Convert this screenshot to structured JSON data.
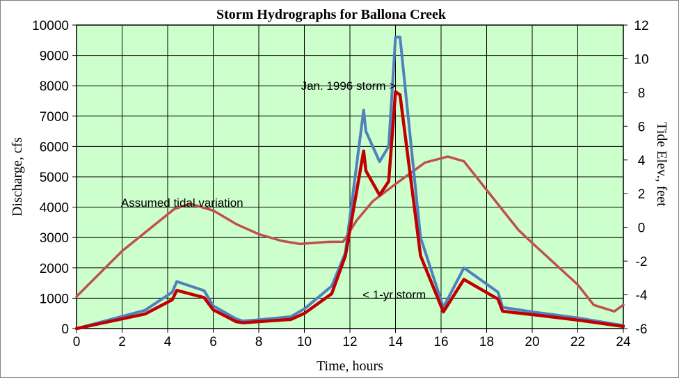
{
  "chart_data": {
    "type": "line",
    "title": "Storm Hydrographs for Ballona Creek",
    "xlabel": "Time, hours",
    "ylabel": "Discharge, cfs",
    "y2label": "Tide Elev., feet",
    "xlim": [
      0,
      24
    ],
    "ylim": [
      0,
      10000
    ],
    "y2lim": [
      -6,
      12
    ],
    "xticks": [
      "0",
      "2",
      "4",
      "6",
      "8",
      "10",
      "12",
      "14",
      "16",
      "18",
      "20",
      "22",
      "24"
    ],
    "yticks": [
      "0",
      "1000",
      "2000",
      "3000",
      "4000",
      "5000",
      "6000",
      "7000",
      "8000",
      "9000",
      "10000"
    ],
    "y2ticks": [
      "-6",
      "-4",
      "-2",
      "0",
      "2",
      "4",
      "6",
      "8",
      "10",
      "12"
    ],
    "grid": true,
    "colors": {
      "plot_background": "#ccffcc",
      "grid": "#000000",
      "jan_1996": "#4f81bd",
      "one_year": "#c00000",
      "tide": "#c0504d"
    },
    "series": [
      {
        "key": "jan_1996",
        "axis": "left",
        "x": [
          0,
          3,
          4.2,
          4.4,
          5.6,
          6,
          7,
          7.3,
          8,
          9.4,
          10,
          11.2,
          11.8,
          12.6,
          12.7,
          13.3,
          13.7,
          14,
          14.2,
          15.1,
          16.1,
          17,
          18.5,
          18.7,
          20,
          22,
          24
        ],
        "values": [
          0,
          600,
          1200,
          1550,
          1250,
          750,
          320,
          250,
          290,
          390,
          650,
          1400,
          2500,
          7200,
          6500,
          5500,
          6000,
          9600,
          9600,
          3000,
          700,
          2000,
          1200,
          700,
          550,
          350,
          100
        ]
      },
      {
        "key": "one_year",
        "axis": "left",
        "x": [
          0,
          3,
          4.2,
          4.4,
          5.6,
          6,
          7,
          7.3,
          8,
          9.4,
          10,
          11.2,
          11.8,
          12.6,
          12.7,
          13.3,
          13.7,
          14,
          14.2,
          15.1,
          16.1,
          17,
          18.5,
          18.7,
          20,
          22,
          24
        ],
        "values": [
          0,
          480,
          950,
          1260,
          1020,
          620,
          230,
          190,
          230,
          300,
          500,
          1150,
          2400,
          5850,
          5200,
          4400,
          4850,
          7800,
          7700,
          2400,
          550,
          1620,
          970,
          570,
          460,
          280,
          70
        ]
      },
      {
        "key": "tide",
        "axis": "right",
        "x": [
          0,
          2,
          4.3,
          5,
          6,
          7,
          8,
          9,
          9.8,
          11,
          11.7,
          12.3,
          13,
          14,
          15.3,
          16.3,
          17,
          18,
          19.4,
          20,
          22,
          22.7,
          23.6,
          24
        ],
        "values": [
          -4.1,
          -1.4,
          1.1,
          1.4,
          1.0,
          0.2,
          -0.4,
          -0.8,
          -0.98,
          -0.86,
          -0.85,
          0.42,
          1.55,
          2.57,
          3.85,
          4.2,
          3.92,
          2.22,
          -0.16,
          -0.92,
          -3.4,
          -4.6,
          -4.98,
          -4.6
        ]
      }
    ],
    "annotations": [
      {
        "text": "Jan. 1996 storm >",
        "x": 9.85,
        "y": 8000
      },
      {
        "text": "Assumed tidal variation",
        "x": 1.95,
        "y": 4150
      },
      {
        "text": "< 1-yr storm",
        "x": 12.55,
        "y": 1120
      }
    ]
  }
}
